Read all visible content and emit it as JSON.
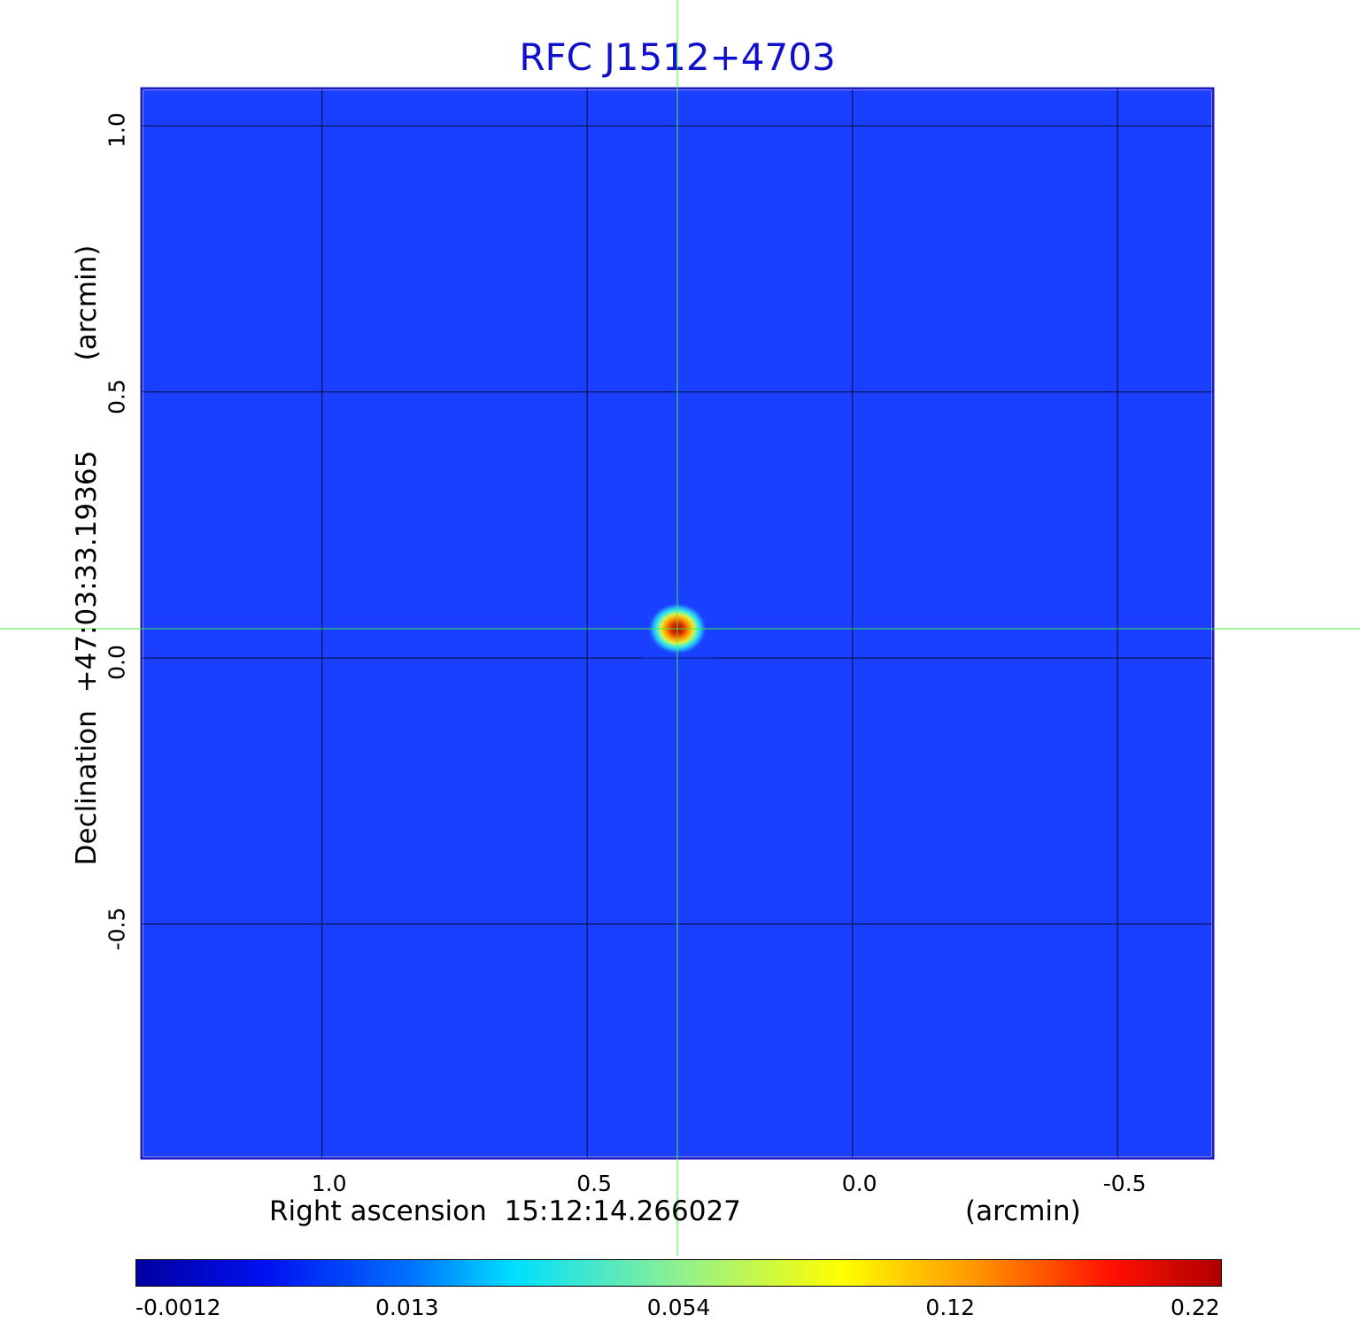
{
  "chart_data": {
    "type": "heatmap",
    "title": "RFC J1512+4703",
    "xlabel": "Right ascension  15:12:14.266027",
    "xunit": "(arcmin)",
    "ylabel": "Declination  +47:03:33.19365",
    "yunit": "(arcmin)",
    "x_ticks": [
      "1.0",
      "0.5",
      "0.0",
      "-0.5"
    ],
    "x_tick_values": [
      1.0,
      0.5,
      0.0,
      -0.5
    ],
    "y_ticks": [
      "1.0",
      "0.5",
      "0.0",
      "-0.5"
    ],
    "y_tick_values": [
      1.0,
      0.5,
      0.0,
      -0.5
    ],
    "xlim": [
      1.34,
      -0.68
    ],
    "ylim": [
      -0.94,
      1.07
    ],
    "x_reversed": true,
    "grid": true,
    "colormap": "jet",
    "colorbar": {
      "tick_labels": [
        "-0.0012",
        "0.013",
        "0.054",
        "0.12",
        "0.22"
      ],
      "tick_values": [
        -0.0012,
        0.013,
        0.054,
        0.12,
        0.22
      ]
    },
    "source": {
      "x": 0.33,
      "y": 0.055,
      "peak": 0.22
    },
    "crosshair": {
      "x": 0.33,
      "y": 0.055
    },
    "colors": {
      "title": "#1010cc",
      "frame": "#1a1acc",
      "background_map": "#1a3fff",
      "crosshair": "#40ee40",
      "grid": "#000000"
    }
  }
}
